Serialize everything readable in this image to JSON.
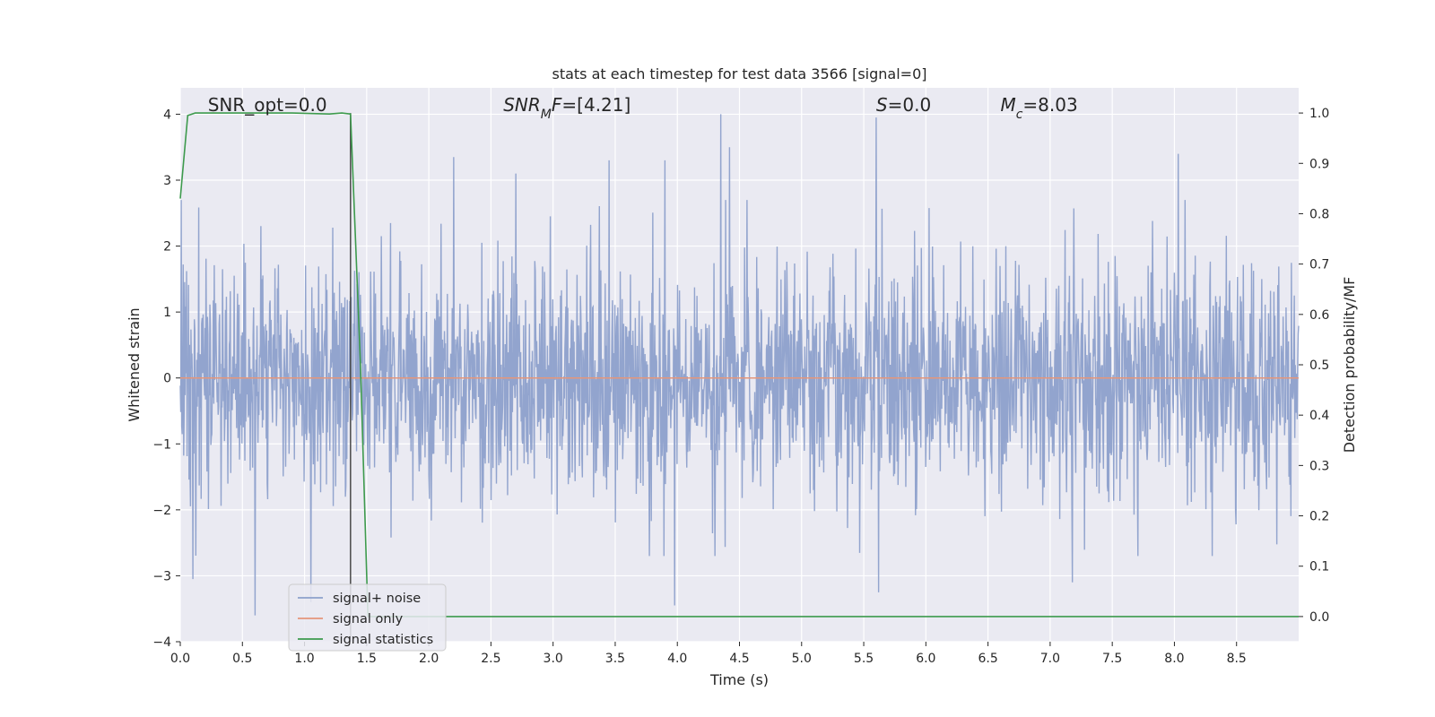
{
  "chart_data": {
    "type": "line",
    "title": "stats at each timestep for test data 3566 [signal=0]",
    "xlabel": "Time (s)",
    "ylabel_left": "Whitened strain",
    "ylabel_right": "Detection probability/MF",
    "xlim": [
      0.0,
      9.0
    ],
    "ylim_left": [
      -4.0,
      4.4
    ],
    "ylim_right": [
      -0.05,
      1.05
    ],
    "x_ticks": [
      0.0,
      0.5,
      1.0,
      1.5,
      2.0,
      2.5,
      3.0,
      3.5,
      4.0,
      4.5,
      5.0,
      5.5,
      6.0,
      6.5,
      7.0,
      7.5,
      8.0,
      8.5
    ],
    "x_tick_labels": [
      "0.0",
      "0.5",
      "1.0",
      "1.5",
      "2.0",
      "2.5",
      "3.0",
      "3.5",
      "4.0",
      "4.5",
      "5.0",
      "5.5",
      "6.0",
      "6.5",
      "7.0",
      "7.5",
      "8.0",
      "8.5"
    ],
    "y_left_ticks": [
      -4,
      -3,
      -2,
      -1,
      0,
      1,
      2,
      3,
      4
    ],
    "y_left_tick_labels": [
      "−4",
      "−3",
      "−2",
      "−1",
      "0",
      "1",
      "2",
      "3",
      "4"
    ],
    "y_right_ticks": [
      0.0,
      0.1,
      0.2,
      0.3,
      0.4,
      0.5,
      0.6,
      0.7,
      0.8,
      0.9,
      1.0
    ],
    "y_right_tick_labels": [
      "0.0",
      "0.1",
      "0.2",
      "0.3",
      "0.4",
      "0.5",
      "0.6",
      "0.7",
      "0.8",
      "0.9",
      "1.0"
    ],
    "grid": true,
    "legend_position": "lower-left",
    "annotations": [
      {
        "parts": [
          {
            "t": "SNR_opt=0.0",
            "style": "normal"
          }
        ],
        "x": 0.2,
        "y": 4.1
      },
      {
        "parts": [
          {
            "t": "SNR",
            "style": "italic"
          },
          {
            "t": "M",
            "style": "italic-sub"
          },
          {
            "t": "F",
            "style": "italic"
          },
          {
            "t": "=[4.21]",
            "style": "normal"
          }
        ],
        "x": 2.6,
        "y": 4.1
      },
      {
        "parts": [
          {
            "t": "S",
            "style": "italic"
          },
          {
            "t": "=0.0",
            "style": "normal"
          }
        ],
        "x": 5.6,
        "y": 4.1
      },
      {
        "parts": [
          {
            "t": "M",
            "style": "italic"
          },
          {
            "t": "c",
            "style": "italic-sub"
          },
          {
            "t": "=8.03",
            "style": "normal"
          }
        ],
        "x": 6.6,
        "y": 4.1
      }
    ],
    "vline_x": 1.37,
    "series": [
      {
        "name": "signal+ noise",
        "color": "#8da0cb",
        "axis": "left",
        "note_style": "dense noise",
        "sample_rate": 256,
        "duration": 9.0,
        "seed": 3566,
        "amplitude": 0.88,
        "peaks": [
          {
            "x": 0.6,
            "y": -3.6
          },
          {
            "x": 0.1,
            "y": -3.05
          },
          {
            "x": 2.2,
            "y": 3.35
          },
          {
            "x": 4.35,
            "y": 4.0
          },
          {
            "x": 4.42,
            "y": 3.5
          },
          {
            "x": 3.98,
            "y": -3.45
          },
          {
            "x": 5.6,
            "y": 3.95
          },
          {
            "x": 5.62,
            "y": -3.25
          },
          {
            "x": 8.03,
            "y": 3.4
          },
          {
            "x": 1.05,
            "y": -3.4
          },
          {
            "x": 7.18,
            "y": -3.1
          },
          {
            "x": 2.7,
            "y": 3.1
          },
          {
            "x": 3.45,
            "y": 3.3
          },
          {
            "x": 3.9,
            "y": 3.3
          }
        ]
      },
      {
        "name": "signal only",
        "color": "#e5967a",
        "axis": "left",
        "x": [
          0.0,
          9.0
        ],
        "y": [
          0.0,
          0.0
        ]
      },
      {
        "name": "signal statistics",
        "color": "#3d9a4d",
        "axis": "right",
        "x": [
          0.0,
          0.06,
          0.12,
          0.3,
          0.6,
          0.9,
          1.2,
          1.3,
          1.37,
          1.45,
          1.51,
          1.6,
          2.0,
          4.0,
          6.0,
          8.0,
          9.0
        ],
        "y": [
          0.83,
          0.995,
          1.0,
          1.0,
          1.0,
          1.0,
          0.998,
          1.0,
          0.998,
          0.5,
          0.0,
          0.0,
          0.0,
          0.0,
          0.0,
          0.0,
          0.0
        ]
      }
    ]
  }
}
